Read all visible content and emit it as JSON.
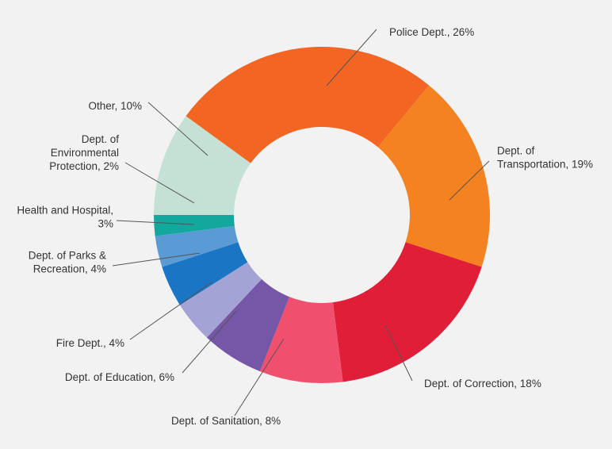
{
  "chart_data": {
    "type": "pie",
    "style": "donut",
    "title": "",
    "slices": [
      {
        "name": "Police Dept.",
        "value": 26,
        "label_lines": [
          "Police Dept., 26%"
        ],
        "color": "#f26522"
      },
      {
        "name": "Dept. of Transportation",
        "value": 19,
        "label_lines": [
          "Dept. of",
          "Transportation, 19%"
        ],
        "color": "#f58220"
      },
      {
        "name": "Dept. of Correction",
        "value": 18,
        "label_lines": [
          "Dept. of Correction, 18%"
        ],
        "color": "#e01e37"
      },
      {
        "name": "Dept. of Sanitation",
        "value": 8,
        "label_lines": [
          "Dept. of Sanitation, 8%"
        ],
        "color": "#f0506e"
      },
      {
        "name": "Dept. of Education",
        "value": 6,
        "label_lines": [
          "Dept. of Education, 6%"
        ],
        "color": "#7656a6"
      },
      {
        "name": "Fire Dept.",
        "value": 4,
        "label_lines": [
          "Fire Dept., 4%"
        ],
        "color": "#a3a3d6"
      },
      {
        "name": "Dept. of Parks & Recreation",
        "value": 4,
        "label_lines": [
          "Dept. of Parks &",
          "Recreation, 4%"
        ],
        "color": "#1a75c4"
      },
      {
        "name": "Health and Hospital",
        "value": 3,
        "label_lines": [
          "Health and Hospital,",
          "3%"
        ],
        "color": "#5b9bd5"
      },
      {
        "name": "Dept. of Environmental Protection",
        "value": 2,
        "label_lines": [
          "Dept. of",
          "Environmental",
          "Protection, 2%"
        ],
        "color": "#13a89e"
      },
      {
        "name": "Other",
        "value": 10,
        "label_lines": [
          "Other, 10%"
        ],
        "color": "#c5e0d4"
      }
    ]
  }
}
